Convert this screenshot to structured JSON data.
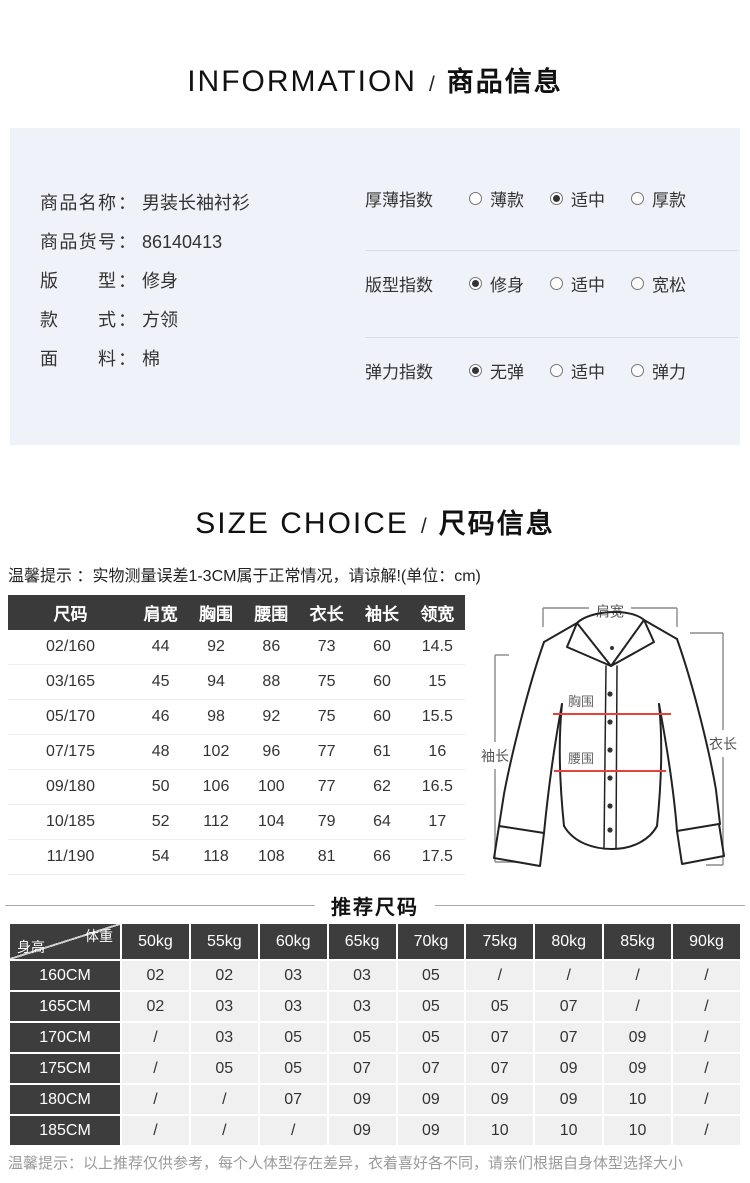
{
  "info_header": {
    "en": "INFORMATION",
    "slash": "/",
    "zh": "商品信息"
  },
  "product": {
    "colon": "：",
    "fields": [
      {
        "label": "商品名称",
        "value": "男装长袖衬衫"
      },
      {
        "label": "商品货号",
        "value": "86140413"
      },
      {
        "label": "版型",
        "value": "修身"
      },
      {
        "label": "款式",
        "value": "方领"
      },
      {
        "label": "面料",
        "value": "棉"
      }
    ],
    "indices": [
      {
        "label": "厚薄指数",
        "options": [
          "薄款",
          "适中",
          "厚款"
        ],
        "selected": 1
      },
      {
        "label": "版型指数",
        "options": [
          "修身",
          "适中",
          "宽松"
        ],
        "selected": 0
      },
      {
        "label": "弹力指数",
        "options": [
          "无弹",
          "适中",
          "弹力"
        ],
        "selected": 0
      }
    ]
  },
  "size_header": {
    "en": "SIZE CHOICE",
    "slash": "/",
    "zh": "尺码信息"
  },
  "size_tip": "温馨提示 ：实物测量误差1-3CM属于正常情况，请谅解!(单位：cm)",
  "size_table": {
    "headers": [
      "尺码",
      "肩宽",
      "胸围",
      "腰围",
      "衣长",
      "袖长",
      "领宽"
    ],
    "rows": [
      [
        "02/160",
        "44",
        "92",
        "86",
        "73",
        "60",
        "14.5"
      ],
      [
        "03/165",
        "45",
        "94",
        "88",
        "75",
        "60",
        "15"
      ],
      [
        "05/170",
        "46",
        "98",
        "92",
        "75",
        "60",
        "15.5"
      ],
      [
        "07/175",
        "48",
        "102",
        "96",
        "77",
        "61",
        "16"
      ],
      [
        "09/180",
        "50",
        "106",
        "100",
        "77",
        "62",
        "16.5"
      ],
      [
        "10/185",
        "52",
        "112",
        "104",
        "79",
        "64",
        "17"
      ],
      [
        "11/190",
        "54",
        "118",
        "108",
        "81",
        "66",
        "17.5"
      ]
    ]
  },
  "diagram_labels": {
    "shoulder": "肩宽",
    "chest": "胸围",
    "waist": "腰围",
    "sleeve": "袖长",
    "length": "衣长"
  },
  "recommend_title": "推荐尺码",
  "recommend_table": {
    "corner_top": "体重",
    "corner_bottom": "身高",
    "weight_headers": [
      "50kg",
      "55kg",
      "60kg",
      "65kg",
      "70kg",
      "75kg",
      "80kg",
      "85kg",
      "90kg"
    ],
    "rows": [
      {
        "height": "160CM",
        "values": [
          "02",
          "02",
          "03",
          "03",
          "05",
          "/",
          "/",
          "/",
          "/"
        ]
      },
      {
        "height": "165CM",
        "values": [
          "02",
          "03",
          "03",
          "03",
          "05",
          "05",
          "07",
          "/",
          "/"
        ]
      },
      {
        "height": "170CM",
        "values": [
          "/",
          "03",
          "05",
          "05",
          "05",
          "07",
          "07",
          "09",
          "/"
        ]
      },
      {
        "height": "175CM",
        "values": [
          "/",
          "05",
          "05",
          "07",
          "07",
          "07",
          "09",
          "09",
          "/"
        ]
      },
      {
        "height": "180CM",
        "values": [
          "/",
          "/",
          "07",
          "09",
          "09",
          "09",
          "09",
          "10",
          "/"
        ]
      },
      {
        "height": "185CM",
        "values": [
          "/",
          "/",
          "/",
          "09",
          "09",
          "10",
          "10",
          "10",
          "/"
        ]
      }
    ]
  },
  "bottom_tip": "温馨提示：以上推荐仅供参考，每个人体型存在差异，衣着喜好各不同，请亲们根据自身体型选择大小",
  "colors": {
    "box_bg": "#eff2f8",
    "table_header_bg": "#3a3a3a",
    "rec_cell_bg": "#f0f0f0",
    "measure_line_red": "#e8403a",
    "muted_text": "#9a9a9a"
  }
}
